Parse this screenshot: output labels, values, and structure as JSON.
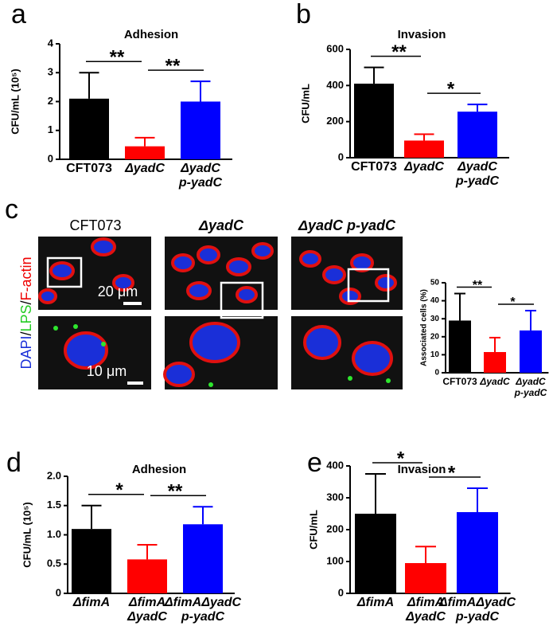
{
  "panels": {
    "letters": [
      "a",
      "b",
      "c",
      "d",
      "e"
    ],
    "image_columns": [
      "CFT073",
      "ΔyadC",
      "ΔyadC p-yadC"
    ],
    "stain_label": [
      "DAPI",
      "/",
      "LPS",
      "/",
      "F-actin"
    ],
    "scale_bars": [
      "20 μm",
      "10 μm"
    ]
  },
  "chart_data": [
    {
      "type": "bar",
      "title": "Adhesion",
      "y_label": "CFU/mL (10⁵)",
      "categories": [
        [
          "CFT073"
        ],
        [
          "ΔyadC"
        ],
        [
          "ΔyadC",
          "p-yadC"
        ]
      ],
      "values": [
        2.1,
        0.45,
        2.0
      ],
      "errors": [
        0.9,
        0.3,
        0.7
      ],
      "colors": [
        "#000000",
        "#ff0000",
        "#0000ff"
      ],
      "ylim": [
        0,
        4
      ],
      "yticks": [
        0,
        1,
        2,
        3,
        4
      ],
      "annotations": [
        "**",
        "**"
      ]
    },
    {
      "type": "bar",
      "title": "Invasion",
      "y_label": "CFU/mL",
      "categories": [
        [
          "CFT073"
        ],
        [
          "ΔyadC"
        ],
        [
          "ΔyadC",
          "p-yadC"
        ]
      ],
      "values": [
        410,
        95,
        255
      ],
      "errors": [
        90,
        35,
        40
      ],
      "colors": [
        "#000000",
        "#ff0000",
        "#0000ff"
      ],
      "ylim": [
        0,
        600
      ],
      "yticks": [
        0,
        200,
        400,
        600
      ],
      "annotations": [
        "**",
        "*"
      ]
    },
    {
      "type": "bar",
      "y_label": "Associated cells (%)",
      "categories": [
        [
          "CFT073"
        ],
        [
          "ΔyadC"
        ],
        [
          "ΔyadC",
          "p-yadC"
        ]
      ],
      "values": [
        29,
        11.5,
        23.5
      ],
      "errors": [
        15,
        8,
        11
      ],
      "colors": [
        "#000000",
        "#ff0000",
        "#0000ff"
      ],
      "ylim": [
        0,
        50
      ],
      "yticks": [
        0,
        10,
        20,
        30,
        40,
        50
      ],
      "annotations": [
        "**",
        "*"
      ]
    },
    {
      "type": "bar",
      "title": "Adhesion",
      "y_label": "CFU/mL (10⁵)",
      "categories": [
        [
          "ΔfimA"
        ],
        [
          "ΔfimA",
          "ΔyadC"
        ],
        [
          "ΔfimAΔyadC",
          "p-yadC"
        ]
      ],
      "values": [
        1.1,
        0.58,
        1.18
      ],
      "errors": [
        0.4,
        0.25,
        0.3
      ],
      "colors": [
        "#000000",
        "#ff0000",
        "#0000ff"
      ],
      "ylim": [
        0,
        2
      ],
      "yticks": [
        0,
        0.5,
        {
          "value": 1,
          "label": "1.0"
        },
        1.5,
        {
          "value": 2,
          "label": "2.0"
        }
      ],
      "annotations": [
        "*",
        "**"
      ]
    },
    {
      "type": "bar",
      "title": "Invasion",
      "y_label": "CFU/mL",
      "categories": [
        [
          "ΔfimA"
        ],
        [
          "ΔfimA",
          "ΔyadC"
        ],
        [
          "ΔfimAΔyadC",
          "p-yadC"
        ]
      ],
      "values": [
        250,
        95,
        255
      ],
      "errors": [
        125,
        52,
        75
      ],
      "colors": [
        "#000000",
        "#ff0000",
        "#0000ff"
      ],
      "ylim": [
        0,
        400
      ],
      "yticks": [
        0,
        100,
        200,
        300,
        400
      ],
      "annotations": [
        "*",
        "*"
      ]
    }
  ]
}
